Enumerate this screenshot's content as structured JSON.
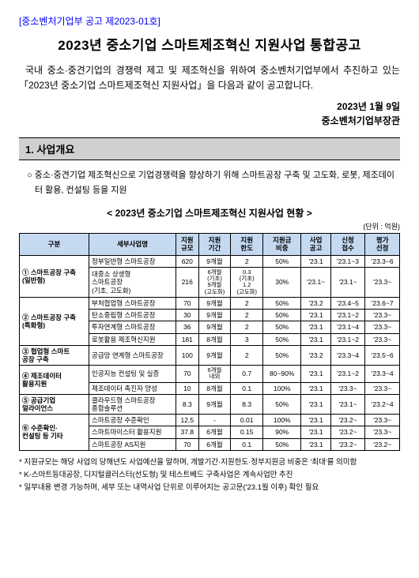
{
  "notice_no": "[중소벤처기업부 공고 제2023-01호]",
  "main_title": "2023년 중소기업 스마트제조혁신 지원사업 통합공고",
  "intro": "국내 중소·중견기업의 경쟁력 제고 및 제조혁신을 위하여 중소벤처기업부에서 추진하고 있는 「2023년 중소기업 스마트제조혁신 지원사업」을 다음과 같이 공고합니다.",
  "date": "2023년 1월 9일",
  "signer": "중소벤처기업부장관",
  "section1": "1. 사업개요",
  "overview": "○ 중소·중견기업 제조혁신으로 기업경쟁력을 향상하기 위해 스마트공장 구축 및 고도화, 로봇, 제조데이터 활용, 컨설팅 등을 지원",
  "table_title": "< 2023년 중소기업 스마트제조혁신 지원사업 현황 >",
  "unit": "(단위 : 억원)",
  "headers": [
    "구분",
    "세부사업명",
    "지원\n규모",
    "지원\n기간",
    "지원\n한도",
    "지원금\n비중",
    "사업\n공고",
    "신청\n접수",
    "평가\n선정"
  ],
  "rows": [
    {
      "cat": "① 스마트공장 구축\n(일반형)",
      "catRowSpan": 2,
      "sub": "정부일반형 스마트공장",
      "v": [
        "620",
        "9개월",
        "2",
        "50%",
        "'23.1",
        "'23.1~3",
        "'23.3~6"
      ]
    },
    {
      "sub": "대중소 상생형\n스마트공장\n(기초, 고도화)",
      "v": [
        "216",
        "6개월\n(기초)\n9개월\n(고도화)",
        "0.3\n(기초)\n1.2\n(고도화)",
        "30%",
        "'23.1~",
        "'23.1~",
        "'23.3~"
      ]
    },
    {
      "cat": "② 스마트공장 구축\n(특화형)",
      "catRowSpan": 4,
      "sub": "부처협업형 스마트공장",
      "v": [
        "70",
        "9개월",
        "2",
        "50%",
        "'23.2",
        "'23.4~5",
        "'23.6~7"
      ]
    },
    {
      "sub": "탄소중립형 스마트공장",
      "v": [
        "30",
        "9개월",
        "2",
        "50%",
        "'23.1",
        "'23.1~2",
        "'23.3~"
      ]
    },
    {
      "sub": "투자연계형 스마트공장",
      "v": [
        "36",
        "9개월",
        "2",
        "50%",
        "'23.1",
        "'23.1~4",
        "'23.3~"
      ]
    },
    {
      "sub": "로봇활용 제조혁신지원",
      "v": [
        "181",
        "8개월",
        "3",
        "50%",
        "'23.1",
        "'23.1~2",
        "'23.3~"
      ]
    },
    {
      "cat": "③ 협업형 스마트\n공장 구축",
      "catRowSpan": 1,
      "sub": "공급망 연계형 스마트공장",
      "v": [
        "100",
        "9개월",
        "2",
        "50%",
        "'23.2",
        "'23.3~4",
        "'23.5~6"
      ]
    },
    {
      "cat": "④ 제조데이터\n활용지원",
      "catRowSpan": 2,
      "sub": "인공지능 컨설팅 및 실증",
      "v": [
        "70",
        "6개월\n내외",
        "0.7",
        "80~90%",
        "'23.1",
        "'23.1~2",
        "'23.3~4"
      ]
    },
    {
      "sub": "제조데이터 촉진자 양성",
      "v": [
        "10",
        "8개월",
        "0.1",
        "100%",
        "'23.1",
        "'23.3~",
        "'23.3~"
      ]
    },
    {
      "cat": "⑤ 공급기업\n얼라이언스",
      "catRowSpan": 1,
      "sub": "클라우드형 스마트공장\n종합솔루션",
      "v": [
        "8.3",
        "9개월",
        "8.3",
        "50%",
        "'23.1",
        "'23.1~",
        "'23.2~4"
      ]
    },
    {
      "cat": "⑥ 수준확인·\n컨설팅 등 기타",
      "catRowSpan": 3,
      "sub": "스마트공장 수준확인",
      "v": [
        "12.5",
        "-",
        "0.01",
        "100%",
        "'23.1",
        "'23.2~",
        "'23.3~"
      ]
    },
    {
      "sub": "스마트마이스터 활용지원",
      "v": [
        "37.8",
        "6개월",
        "0.15",
        "90%",
        "'23.1",
        "'23.2~",
        "'23.3~"
      ]
    },
    {
      "sub": "스마트공장 AS지원",
      "v": [
        "70",
        "6개월",
        "0.1",
        "50%",
        "'23.1",
        "'23.2~",
        "'23.2~"
      ]
    }
  ],
  "footnotes": [
    "* 지원규모는 해당 사업의 당해년도 사업예산을 말하며, 개발기간·지원한도·정부지원금 비중은 '최대'를 의미함",
    "* K-스마트등대공장, 디지털클러스터(선도형) 및 테스트베드 구축사업은 계속사업만 추진",
    "* 일부내용 변경 가능하며, 세부 또는 내역사업 단위로 이루어지는 공고문('23.1월 이후) 확인 필요"
  ],
  "colors": {
    "header_bg": "#c5d9f1",
    "section_bg": "#d0d0d0",
    "link": "#0000ff",
    "border": "#000000"
  }
}
